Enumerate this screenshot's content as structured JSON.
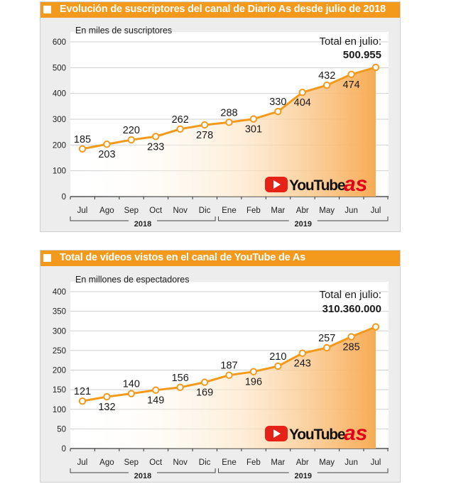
{
  "charts": [
    {
      "header_title": "Evolución de suscriptores del canal de Diario As desde julio de 2018",
      "subtitle": "En miles de suscriptores",
      "total_label": "Total en julio:",
      "total_value": "500.955",
      "year_labels": [
        "2018",
        "2019"
      ],
      "brand_youtube": "YouTube",
      "brand_as": "as"
    },
    {
      "header_title": "Total de vídeos vistos en el canal de YouTube de As",
      "subtitle": "En millones de espectadores",
      "total_label": "Total en julio:",
      "total_value": "310.360.000",
      "year_labels": [
        "2018",
        "2019"
      ],
      "brand_youtube": "YouTube",
      "brand_as": "as"
    }
  ],
  "chart_data": [
    {
      "type": "area",
      "title": "Evolución de suscriptores del canal de Diario As desde julio de 2018",
      "subtitle": "En miles de suscriptores",
      "categories": [
        "Jul",
        "Ago",
        "Sep",
        "Oct",
        "Nov",
        "Dic",
        "Ene",
        "Feb",
        "Mar",
        "Abr",
        "May",
        "Jun",
        "Jul"
      ],
      "values": [
        185,
        203,
        220,
        233,
        262,
        278,
        288,
        301,
        330,
        404,
        432,
        474,
        500.955
      ],
      "data_labels": [
        "185",
        "203",
        "220",
        "233",
        "262",
        "278",
        "288",
        "301",
        "330",
        "404",
        "432",
        "474",
        ""
      ],
      "yticks": [
        0,
        100,
        200,
        300,
        400,
        500,
        600
      ],
      "ylim": [
        0,
        600
      ],
      "grid": true,
      "line_color": "#f39a1c"
    },
    {
      "type": "area",
      "title": "Total de vídeos vistos en el canal de YouTube de As",
      "subtitle": "En millones de espectadores",
      "categories": [
        "Jul",
        "Ago",
        "Sep",
        "Oct",
        "Nov",
        "Dic",
        "Ene",
        "Feb",
        "Mar",
        "Abr",
        "May",
        "Jun",
        "Jul"
      ],
      "values": [
        121,
        132,
        140,
        149,
        156,
        169,
        187,
        196,
        210,
        243,
        257,
        285,
        310.36
      ],
      "data_labels": [
        "121",
        "132",
        "140",
        "149",
        "156",
        "169",
        "187",
        "196",
        "210",
        "243",
        "257",
        "285",
        ""
      ],
      "yticks": [
        0,
        50,
        100,
        150,
        200,
        250,
        300,
        350,
        400
      ],
      "ylim": [
        0,
        400
      ],
      "grid": true,
      "line_color": "#f39a1c"
    }
  ]
}
